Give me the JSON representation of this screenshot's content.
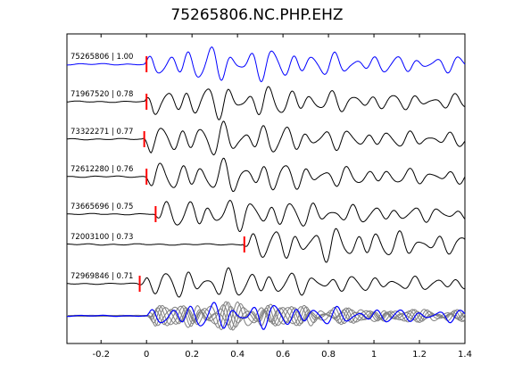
{
  "chart_data": {
    "type": "line",
    "title": "75265806.NC.PHP.EHZ",
    "xlabel": "",
    "ylabel": "",
    "xlim": [
      -0.35,
      1.4
    ],
    "xticks": [
      -0.2,
      0,
      0.2,
      0.4,
      0.6,
      0.8,
      1,
      1.2,
      1.4
    ],
    "xtick_labels": [
      "-0.2",
      "0",
      "0.2",
      "0.4",
      "0.6",
      "0.8",
      "1",
      "1.2",
      "1.4"
    ],
    "grid": false,
    "colors": {
      "reference": "#0000ff",
      "trace": "#000000",
      "pick": "#ff0000",
      "overlay": "#808080"
    },
    "series": [
      {
        "name": "75265806 | 1.00",
        "pick": 0.0,
        "color": "#0000ff"
      },
      {
        "name": "71967520 | 0.78",
        "pick": 0.0,
        "color": "#000000"
      },
      {
        "name": "73322271 | 0.77",
        "pick": -0.01,
        "color": "#000000"
      },
      {
        "name": "72612280 | 0.76",
        "pick": 0.0,
        "color": "#000000"
      },
      {
        "name": "73665696 | 0.75",
        "pick": 0.04,
        "color": "#000000"
      },
      {
        "name": "72003100 | 0.73",
        "pick": 0.43,
        "color": "#000000"
      },
      {
        "name": "72969846 | 0.71",
        "pick": -0.03,
        "color": "#000000"
      }
    ],
    "overlay": {
      "description_color": "#808080",
      "reference_color": "#0000ff"
    }
  }
}
